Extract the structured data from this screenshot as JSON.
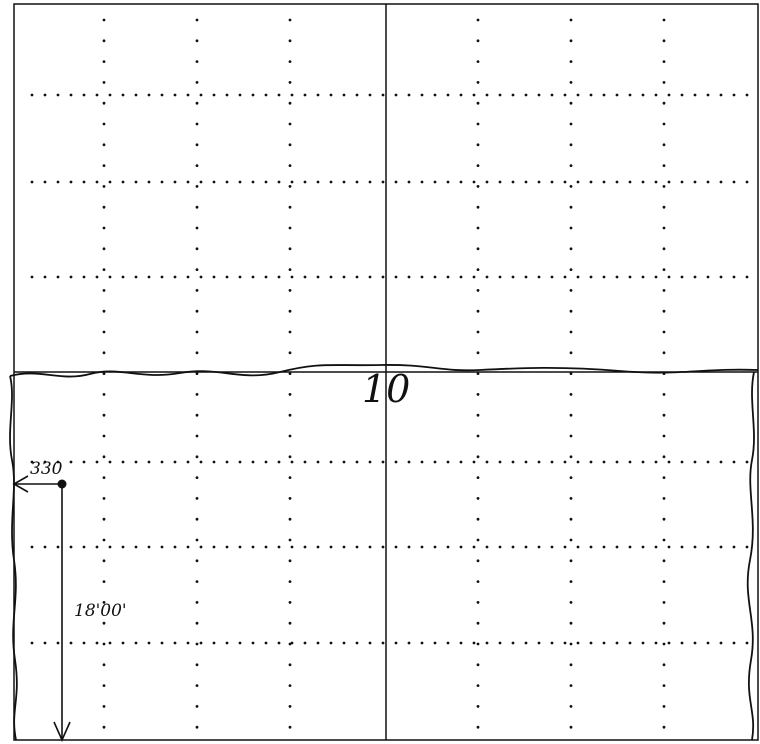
{
  "section_number": "10",
  "offset_label": "330",
  "distance_label": "18'00'",
  "colors": {
    "ink": "#111111",
    "paper": "#ffffff"
  }
}
